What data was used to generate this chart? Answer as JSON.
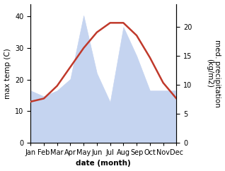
{
  "months": [
    "Jan",
    "Feb",
    "Mar",
    "Apr",
    "May",
    "Jun",
    "Jul",
    "Aug",
    "Sep",
    "Oct",
    "Nov",
    "Dec"
  ],
  "temperature": [
    13,
    14,
    18,
    24,
    30,
    35,
    38,
    38,
    34,
    27,
    19,
    14
  ],
  "precipitation": [
    9,
    8,
    9,
    11,
    22,
    12,
    7,
    20,
    15,
    9,
    9,
    9
  ],
  "temp_color": "#c0392b",
  "precip_fill_color": "#c5d4f0",
  "precip_edge_color": "#c5d4f0",
  "temp_ylim": [
    0,
    44
  ],
  "precip_ylim": [
    0,
    24
  ],
  "temp_yticks": [
    0,
    10,
    20,
    30,
    40
  ],
  "precip_yticks": [
    0,
    5,
    10,
    15,
    20
  ],
  "ylabel_left": "max temp (C)",
  "ylabel_right": "med. precipitation\n(kg/m2)",
  "xlabel": "date (month)",
  "axis_fontsize": 7.5,
  "tick_fontsize": 7,
  "line_width": 1.8,
  "bg_color": "#ffffff",
  "precip_scale_factor": 2.0
}
